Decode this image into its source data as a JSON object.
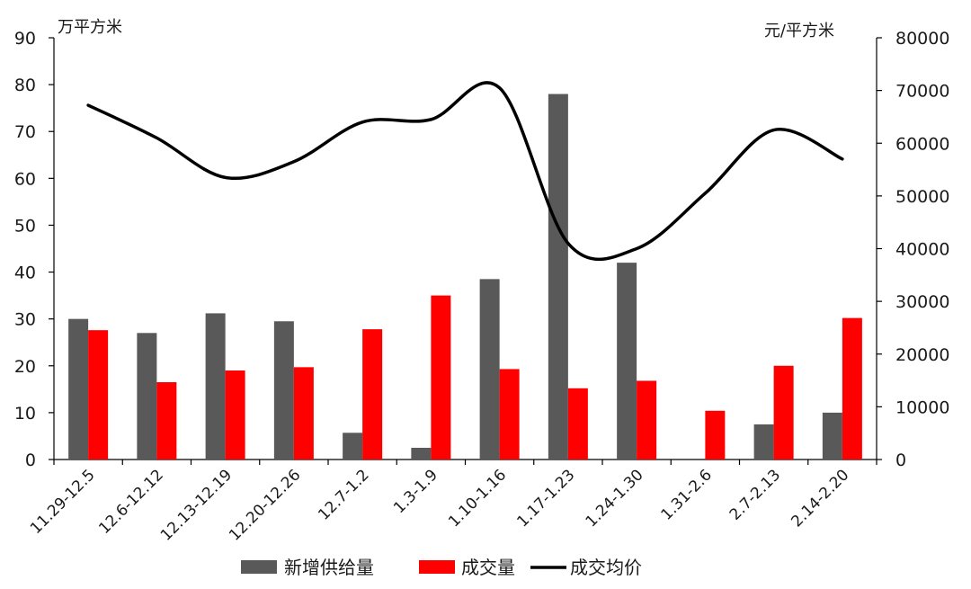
{
  "chart_data": {
    "type": "bar",
    "categories": [
      "11.29-12.5",
      "12.6-12.12",
      "12.13-12.19",
      "12.20-12.26",
      "12.7-1.2",
      "1.3-1.9",
      "1.10-1.16",
      "1.17-1.23",
      "1.24-1.30",
      "1.31-2.6",
      "2.7-2.13",
      "2.14-2.20"
    ],
    "series": [
      {
        "name": "新增供给量",
        "type": "bar",
        "axis": "left",
        "color": "#595959",
        "values": [
          30.0,
          27.0,
          31.2,
          29.5,
          5.7,
          2.5,
          38.5,
          78.0,
          42.0,
          0,
          7.5,
          10.0
        ]
      },
      {
        "name": "成交量",
        "type": "bar",
        "axis": "left",
        "color": "#ff0000",
        "values": [
          27.6,
          16.5,
          19.0,
          19.7,
          27.8,
          35.0,
          19.3,
          15.2,
          16.8,
          10.4,
          20.0,
          30.2
        ]
      },
      {
        "name": "成交均价",
        "type": "line",
        "axis": "right",
        "color": "#000000",
        "values": [
          67200,
          61000,
          53500,
          56500,
          64000,
          64500,
          70500,
          41000,
          40000,
          50500,
          62500,
          57000
        ]
      }
    ],
    "left_axis": {
      "unit": "万平方米",
      "min": 0,
      "max": 90,
      "step": 10,
      "ticks": [
        "0",
        "10",
        "20",
        "30",
        "40",
        "50",
        "60",
        "70",
        "80",
        "90"
      ]
    },
    "right_axis": {
      "unit": "元/平方米",
      "min": 0,
      "max": 80000,
      "step": 10000,
      "ticks": [
        "0",
        "10000",
        "20000",
        "30000",
        "40000",
        "50000",
        "60000",
        "70000",
        "80000"
      ]
    },
    "grid": false,
    "legend_position": "bottom"
  }
}
